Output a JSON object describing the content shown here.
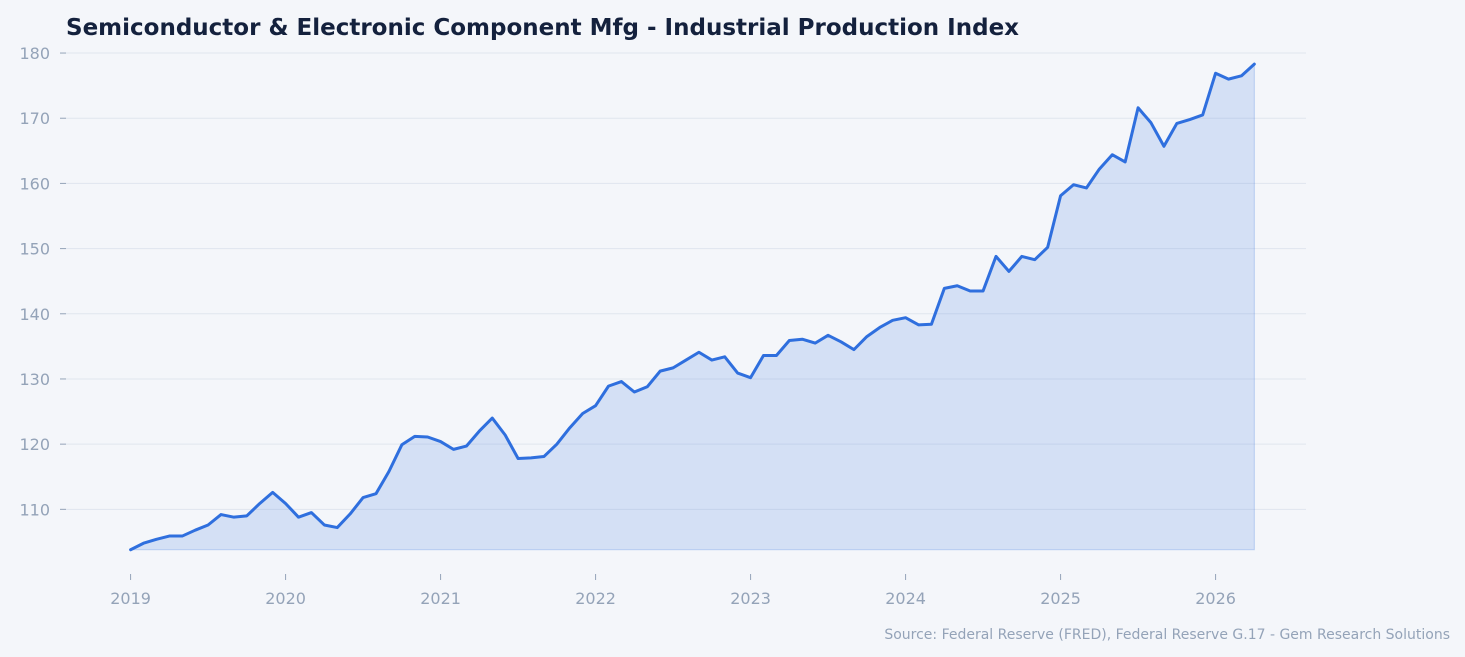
{
  "chart_data": {
    "type": "area",
    "title": "Semiconductor & Electronic Component Mfg - Industrial Production Index",
    "source": "Source: Federal Reserve (FRED), Federal Reserve G.17 - Gem Research Solutions",
    "xlabel": "",
    "ylabel": "",
    "x_tick_labels": [
      "2019",
      "2020",
      "2021",
      "2022",
      "2023",
      "2024",
      "2025",
      "2026"
    ],
    "y_tick_labels": [
      "110",
      "120",
      "130",
      "140",
      "150",
      "160",
      "170",
      "180"
    ],
    "xlim": [
      "2018-08",
      "2026-08"
    ],
    "ylim": [
      101,
      182
    ],
    "grid": true,
    "colors": {
      "line": "#2f6fde",
      "fill": "#2f6fde"
    },
    "x": [
      "2019-01",
      "2019-02",
      "2019-03",
      "2019-04",
      "2019-05",
      "2019-06",
      "2019-07",
      "2019-08",
      "2019-09",
      "2019-10",
      "2019-11",
      "2019-12",
      "2020-01",
      "2020-02",
      "2020-03",
      "2020-04",
      "2020-05",
      "2020-06",
      "2020-07",
      "2020-08",
      "2020-09",
      "2020-10",
      "2020-11",
      "2020-12",
      "2021-01",
      "2021-02",
      "2021-03",
      "2021-04",
      "2021-05",
      "2021-06",
      "2021-07",
      "2021-08",
      "2021-09",
      "2021-10",
      "2021-11",
      "2021-12",
      "2022-01",
      "2022-02",
      "2022-03",
      "2022-04",
      "2022-05",
      "2022-06",
      "2022-07",
      "2022-08",
      "2022-09",
      "2022-10",
      "2022-11",
      "2022-12",
      "2023-01",
      "2023-02",
      "2023-03",
      "2023-04",
      "2023-05",
      "2023-06",
      "2023-07",
      "2023-08",
      "2023-09",
      "2023-10",
      "2023-11",
      "2023-12",
      "2024-01",
      "2024-02",
      "2024-03",
      "2024-04",
      "2024-05",
      "2024-06",
      "2024-07",
      "2024-08",
      "2024-09",
      "2024-10",
      "2024-11",
      "2024-12",
      "2025-01",
      "2025-02",
      "2025-03",
      "2025-04",
      "2025-05",
      "2025-06",
      "2025-07",
      "2025-08",
      "2025-09",
      "2025-10",
      "2025-11",
      "2025-12",
      "2026-01",
      "2026-02",
      "2026-03",
      "2026-04"
    ],
    "values": [
      103.8,
      104.8,
      105.4,
      105.9,
      105.9,
      106.8,
      107.6,
      109.2,
      108.8,
      109.0,
      110.9,
      112.6,
      110.9,
      108.8,
      109.5,
      107.6,
      107.2,
      109.3,
      111.8,
      112.4,
      115.8,
      119.9,
      121.2,
      121.1,
      120.4,
      119.2,
      119.7,
      122.0,
      124.0,
      121.4,
      117.8,
      117.9,
      118.1,
      120.0,
      122.5,
      124.7,
      125.9,
      128.9,
      129.6,
      128.0,
      128.8,
      131.2,
      131.7,
      132.9,
      134.1,
      132.9,
      133.4,
      130.9,
      130.2,
      133.6,
      133.6,
      135.9,
      136.1,
      135.5,
      136.7,
      135.7,
      134.5,
      136.5,
      137.9,
      139.0,
      139.4,
      138.3,
      138.4,
      143.9,
      144.3,
      143.5,
      143.5,
      148.8,
      146.5,
      148.8,
      148.3,
      150.2,
      158.1,
      159.8,
      159.3,
      162.2,
      164.4,
      163.3,
      171.6,
      169.3,
      165.7,
      169.2,
      169.8,
      170.5,
      176.9,
      176.0,
      176.5,
      178.3
    ]
  }
}
